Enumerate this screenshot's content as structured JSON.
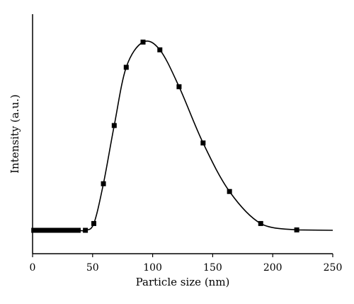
{
  "chart_data": {
    "type": "line",
    "xlabel": "Particle size (nm)",
    "ylabel": "Intensity (a.u.)",
    "xlim": [
      0,
      250
    ],
    "ylim": [
      0,
      100
    ],
    "xticks": [
      "0",
      "50",
      "100",
      "150",
      "200",
      "250"
    ],
    "grid": false,
    "legend": "none",
    "colors": {
      "line": "#000000",
      "marker": "#000000",
      "axis": "#000000"
    },
    "series": [
      {
        "x": [
          1,
          3,
          5,
          7,
          9,
          11,
          13,
          15,
          17,
          19,
          21,
          23,
          25,
          27,
          29,
          31,
          33,
          35,
          38,
          44,
          51,
          59,
          68,
          78,
          92,
          106,
          122,
          142,
          164,
          190,
          220
        ],
        "y": [
          0,
          0,
          0,
          0,
          0,
          0,
          0,
          0,
          0,
          0,
          0,
          0,
          0,
          0,
          0,
          0,
          0,
          0,
          0,
          0,
          3.5,
          24,
          54,
          84,
          97,
          93,
          74,
          45,
          20,
          3.5,
          0.2
        ]
      }
    ]
  }
}
